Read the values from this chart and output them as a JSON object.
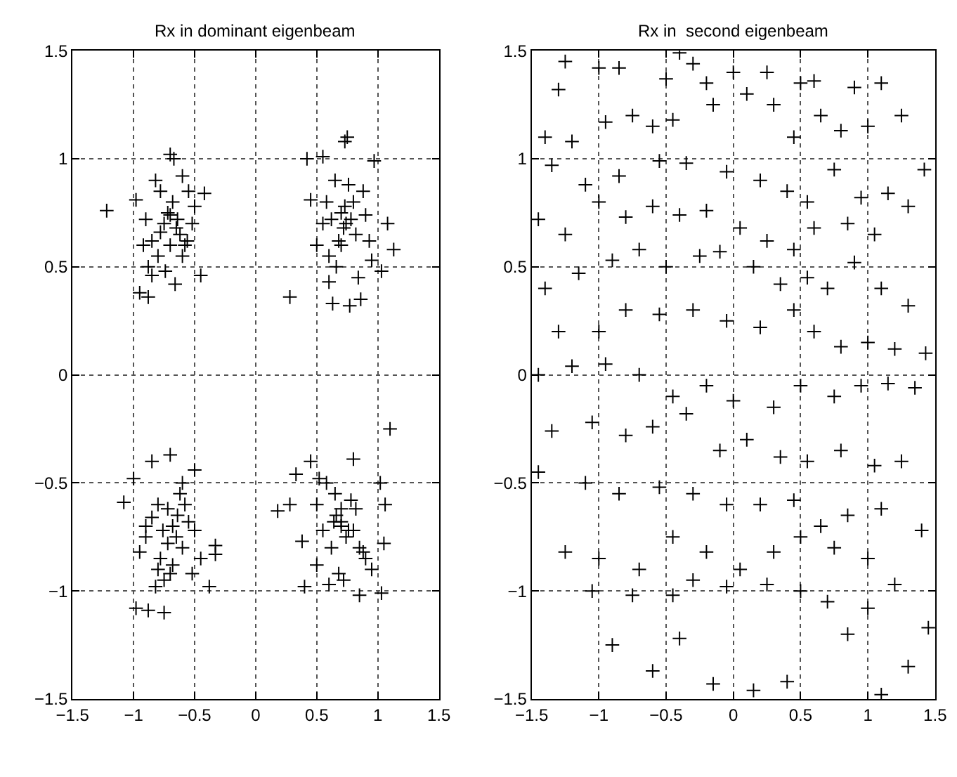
{
  "chart_data": [
    {
      "type": "scatter",
      "title": "Rx in dominant eigenbeam",
      "xlim": [
        -1.5,
        1.5
      ],
      "ylim": [
        -1.5,
        1.5
      ],
      "xticks": [
        -1.5,
        -1,
        -0.5,
        0,
        0.5,
        1,
        1.5
      ],
      "yticks": [
        -1.5,
        -1,
        -0.5,
        0,
        0.5,
        1,
        1.5
      ],
      "grid": true,
      "marker": "cross",
      "series": [
        {
          "color": "#000000",
          "x": [
            -1.22,
            -0.95,
            -0.88,
            -0.45,
            -0.7,
            -0.67,
            -0.82,
            -0.78,
            -0.6,
            -0.55,
            -0.5,
            -0.42,
            -0.98,
            -0.9,
            -0.85,
            -0.75,
            -0.72,
            -0.68,
            -0.65,
            -0.62,
            -0.58,
            -0.52,
            -0.8,
            -0.7,
            -0.88,
            -0.74,
            -0.6,
            -0.66,
            -0.92,
            -0.78,
            -0.64,
            -0.7,
            -0.85,
            -0.56,
            0.28,
            0.63,
            0.77,
            0.86,
            0.75,
            0.73,
            0.42,
            0.55,
            0.97,
            1.13,
            1.08,
            0.5,
            0.58,
            0.65,
            0.7,
            0.74,
            0.78,
            0.82,
            0.9,
            0.6,
            0.68,
            0.72,
            0.8,
            0.88,
            0.95,
            1.03,
            0.45,
            0.62,
            0.7,
            0.76,
            0.66,
            0.84,
            0.55,
            0.73,
            0.6,
            0.93,
            1.1,
            0.18,
            0.28,
            0.85,
            1.03,
            1.05,
            1.06,
            1.02,
            0.33,
            0.45,
            0.8,
            0.4,
            0.6,
            0.5,
            0.55,
            0.62,
            0.66,
            0.7,
            0.74,
            0.78,
            0.82,
            0.9,
            0.95,
            0.58,
            0.65,
            0.7,
            0.76,
            0.85,
            0.38,
            0.5,
            0.68,
            0.72,
            0.8,
            0.64,
            0.88,
            0.52,
            0.7,
            -1.0,
            -1.08,
            -0.38,
            -0.33,
            -0.33,
            -0.98,
            -0.88,
            -0.75,
            -0.7,
            -0.85,
            -0.5,
            -0.95,
            -0.9,
            -0.85,
            -0.8,
            -0.76,
            -0.72,
            -0.68,
            -0.64,
            -0.6,
            -0.55,
            -0.5,
            -0.45,
            -0.8,
            -0.7,
            -0.62,
            -0.58,
            -0.75,
            -0.68,
            -0.9,
            -0.65,
            -0.6,
            -0.82,
            -0.72,
            -0.52,
            -0.78
          ],
          "values": [
            0.76,
            0.38,
            0.36,
            0.46,
            1.02,
            1.0,
            0.9,
            0.85,
            0.92,
            0.85,
            0.78,
            0.84,
            0.81,
            0.72,
            0.62,
            0.7,
            0.75,
            0.8,
            0.68,
            0.65,
            0.6,
            0.7,
            0.55,
            0.6,
            0.5,
            0.48,
            0.55,
            0.42,
            0.6,
            0.66,
            0.72,
            0.74,
            0.46,
            0.62,
            0.36,
            0.33,
            0.32,
            0.35,
            1.1,
            1.08,
            1.0,
            1.01,
            0.99,
            0.58,
            0.7,
            0.6,
            0.8,
            0.9,
            0.75,
            0.7,
            0.72,
            0.65,
            0.74,
            0.55,
            0.62,
            0.68,
            0.8,
            0.85,
            0.53,
            0.48,
            0.81,
            0.72,
            0.6,
            0.88,
            0.5,
            0.45,
            0.7,
            0.78,
            0.43,
            0.62,
            -0.25,
            -0.63,
            -0.6,
            -1.02,
            -1.01,
            -0.78,
            -0.6,
            -0.5,
            -0.46,
            -0.4,
            -0.39,
            -0.98,
            -0.97,
            -0.6,
            -0.72,
            -0.8,
            -0.65,
            -0.7,
            -0.75,
            -0.58,
            -0.62,
            -0.85,
            -0.9,
            -0.5,
            -0.55,
            -0.68,
            -0.72,
            -0.8,
            -0.77,
            -0.88,
            -0.92,
            -0.95,
            -0.72,
            -0.68,
            -0.82,
            -0.48,
            -0.62,
            -0.48,
            -0.59,
            -0.98,
            -0.79,
            -0.83,
            -1.08,
            -1.09,
            -1.1,
            -0.37,
            -0.4,
            -0.44,
            -0.82,
            -0.75,
            -0.66,
            -0.6,
            -0.72,
            -0.78,
            -0.7,
            -0.65,
            -0.8,
            -0.68,
            -0.72,
            -0.85,
            -0.9,
            -0.92,
            -0.55,
            -0.6,
            -0.95,
            -0.88,
            -0.7,
            -0.75,
            -0.5,
            -0.98,
            -0.62,
            -0.92,
            -0.85
          ]
        }
      ]
    },
    {
      "type": "scatter",
      "title": "Rx in  second eigenbeam",
      "xlim": [
        -1.5,
        1.5
      ],
      "ylim": [
        -1.5,
        1.5
      ],
      "xticks": [
        -1.5,
        -1,
        -0.5,
        0,
        0.5,
        1,
        1.5
      ],
      "yticks": [
        -1.5,
        -1,
        -0.5,
        0,
        0.5,
        1,
        1.5
      ],
      "grid": true,
      "marker": "cross",
      "series": [
        {
          "color": "#000000",
          "x": [
            -1.3,
            -1.25,
            -1.0,
            -0.85,
            -0.5,
            -0.4,
            -0.3,
            -0.2,
            0.0,
            0.25,
            0.5,
            0.6,
            0.9,
            1.1,
            -1.4,
            -1.2,
            -0.95,
            -0.75,
            -0.6,
            -0.45,
            -0.15,
            0.1,
            0.3,
            0.45,
            0.65,
            0.8,
            1.0,
            1.25,
            -1.35,
            -1.1,
            -0.85,
            -0.55,
            -0.35,
            -0.05,
            0.2,
            0.4,
            0.55,
            0.75,
            0.95,
            1.15,
            1.42,
            -1.45,
            -1.25,
            -1.0,
            -0.8,
            -0.6,
            -0.4,
            -0.2,
            0.05,
            0.25,
            0.45,
            0.6,
            0.85,
            1.05,
            1.3,
            -1.4,
            -1.15,
            -0.9,
            -0.7,
            -0.5,
            -0.25,
            -0.1,
            0.15,
            0.35,
            0.55,
            0.7,
            0.9,
            1.1,
            1.3,
            -1.3,
            -1.0,
            -0.8,
            -0.55,
            -0.3,
            -0.05,
            0.2,
            0.45,
            0.6,
            0.8,
            1.0,
            1.2,
            1.43,
            -1.45,
            -1.2,
            -0.95,
            -0.7,
            -0.45,
            -0.2,
            0.0,
            0.3,
            0.5,
            0.75,
            0.95,
            1.15,
            1.35,
            -1.35,
            -1.05,
            -0.8,
            -0.6,
            -0.35,
            -0.1,
            0.1,
            0.35,
            0.55,
            0.8,
            1.05,
            1.25,
            -1.45,
            -1.1,
            -0.85,
            -0.55,
            -0.3,
            -0.05,
            0.2,
            0.45,
            0.65,
            0.85,
            1.1,
            1.4,
            -1.25,
            -1.0,
            -0.7,
            -0.45,
            -0.2,
            0.05,
            0.3,
            0.5,
            0.75,
            1.0,
            1.2,
            -1.05,
            -0.75,
            -0.45,
            -0.3,
            -0.05,
            0.25,
            0.5,
            0.7,
            1.0,
            1.45,
            -0.9,
            -0.6,
            -0.4,
            -0.15,
            0.15,
            0.4,
            0.85,
            1.1,
            1.3
          ],
          "values": [
            1.32,
            1.45,
            1.42,
            1.42,
            1.37,
            1.49,
            1.44,
            1.35,
            1.4,
            1.4,
            1.35,
            1.36,
            1.33,
            1.35,
            1.1,
            1.08,
            1.17,
            1.2,
            1.15,
            1.18,
            1.25,
            1.3,
            1.25,
            1.1,
            1.2,
            1.13,
            1.15,
            1.2,
            0.97,
            0.88,
            0.92,
            0.99,
            0.98,
            0.94,
            0.9,
            0.85,
            0.8,
            0.95,
            0.82,
            0.84,
            0.95,
            0.72,
            0.65,
            0.8,
            0.73,
            0.78,
            0.74,
            0.76,
            0.68,
            0.62,
            0.58,
            0.68,
            0.7,
            0.65,
            0.78,
            0.4,
            0.47,
            0.53,
            0.58,
            0.5,
            0.55,
            0.57,
            0.5,
            0.42,
            0.45,
            0.4,
            0.52,
            0.4,
            0.32,
            0.2,
            0.2,
            0.3,
            0.28,
            0.3,
            0.25,
            0.22,
            0.3,
            0.2,
            0.13,
            0.15,
            0.12,
            0.1,
            0.0,
            0.04,
            0.05,
            0.0,
            -0.1,
            -0.05,
            -0.12,
            -0.15,
            -0.05,
            -0.1,
            -0.05,
            -0.04,
            -0.06,
            -0.26,
            -0.22,
            -0.28,
            -0.24,
            -0.18,
            -0.35,
            -0.3,
            -0.38,
            -0.4,
            -0.35,
            -0.42,
            -0.4,
            -0.45,
            -0.5,
            -0.55,
            -0.52,
            -0.55,
            -0.6,
            -0.6,
            -0.58,
            -0.7,
            -0.65,
            -0.62,
            -0.72,
            -0.82,
            -0.85,
            -0.9,
            -0.75,
            -0.82,
            -0.9,
            -0.82,
            -0.75,
            -0.8,
            -0.85,
            -0.97,
            -1.0,
            -1.02,
            -1.02,
            -0.95,
            -0.98,
            -0.97,
            -1.0,
            -1.05,
            -1.08,
            -1.17,
            -1.25,
            -1.37,
            -1.22,
            -1.43,
            -1.46,
            -1.42,
            -1.2,
            -1.48,
            -1.35
          ]
        }
      ]
    }
  ]
}
